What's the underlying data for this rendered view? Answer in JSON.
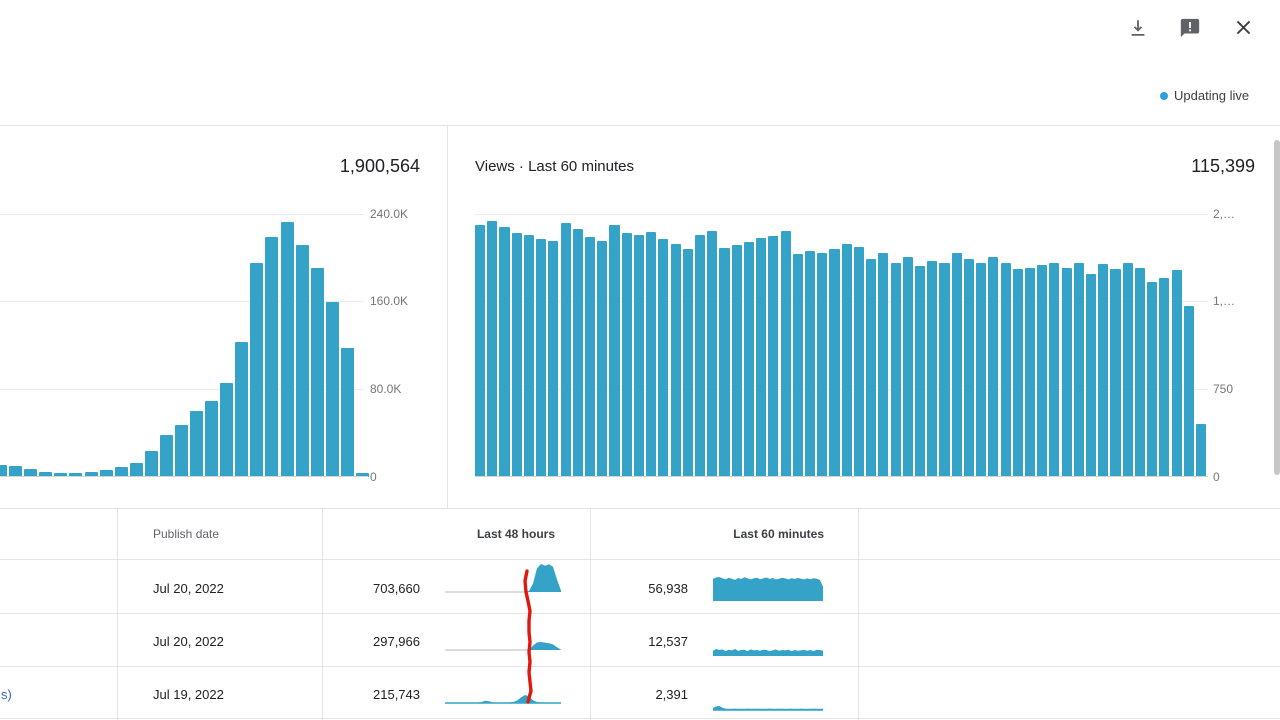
{
  "header": {
    "updating_live_label": "Updating live",
    "icons": [
      {
        "name": "download-icon"
      },
      {
        "name": "feedback-icon"
      },
      {
        "name": "close-icon"
      }
    ]
  },
  "colors": {
    "bar_blue": "#35a3c7",
    "live_dot_blue": "#2aa0dc",
    "red_annotation": "#e0190f",
    "link_blue": "#2e6bc0",
    "grid_gray": "#ececec",
    "axis_gray": "#d2d5d6",
    "border_gray": "#e4e4e4",
    "label_gray": "#767676",
    "icon_gray": "#5f6368",
    "scrollbar_gray": "#c6c6c6"
  },
  "chart_data": [
    {
      "id": "views-last-48-hours",
      "type": "bar",
      "title": "",
      "total": "1,900,564",
      "yticks": [
        "0",
        "80.0K",
        "160.0K",
        "240.0K"
      ],
      "ylim": [
        0,
        240000
      ],
      "values": [
        10900,
        10300,
        7000,
        4900,
        4000,
        3300,
        4500,
        6400,
        9400,
        13000,
        23600,
        38200,
        47300,
        60000,
        69700,
        85500,
        123300,
        195700,
        219100,
        232700,
        211500,
        190900,
        159400,
        117500,
        3300
      ]
    },
    {
      "id": "views-last-60-minutes",
      "type": "bar",
      "title": "Views · Last 60 minutes",
      "total": "115,399",
      "yticks": [
        "0",
        "750",
        "1,…",
        "2,…"
      ],
      "ylim": [
        0,
        2250
      ],
      "values": [
        2156,
        2190,
        2139,
        2088,
        2071,
        2037,
        2020,
        2173,
        2122,
        2054,
        2020,
        2156,
        2088,
        2071,
        2097,
        2037,
        1994,
        1952,
        2071,
        2105,
        1960,
        1985,
        2011,
        2045,
        2062,
        2105,
        1910,
        1930,
        1919,
        1952,
        1994,
        1968,
        1866,
        1919,
        1833,
        1884,
        1808,
        1850,
        1833,
        1920,
        1869,
        1830,
        1886,
        1835,
        1779,
        1787,
        1813,
        1835,
        1787,
        1827,
        1736,
        1821,
        1784,
        1827,
        1787,
        1671,
        1707,
        1770,
        1466,
        458
      ]
    }
  ],
  "table": {
    "headers": [
      {
        "label": "Publish date"
      },
      {
        "label": "Last 48 hours"
      },
      {
        "label": "Last 60 minutes"
      }
    ],
    "rows": [
      {
        "publish_date": "Jul 20, 2022",
        "last_48_hours": "703,660",
        "last_60_minutes": "56,938",
        "spark_last48": [
          0,
          0,
          0,
          0,
          0,
          0,
          0,
          0,
          0,
          0,
          0,
          0,
          0,
          0,
          0,
          0,
          0,
          0,
          0,
          0,
          0,
          0.04,
          0.3,
          0.85,
          1,
          0.94,
          0.99,
          0.9,
          0.45,
          0.05
        ],
        "bars_last60": [
          0.92,
          0.98,
          1,
          0.95,
          0.9,
          0.97,
          0.93,
          0.88,
          0.96,
          0.92,
          0.99,
          0.94,
          0.9,
          0.95,
          0.97,
          0.91,
          0.94,
          0.98,
          0.92,
          0.96,
          0.9,
          0.93,
          0.97,
          0.94,
          0.9,
          0.95,
          0.92,
          0.96,
          0.93,
          0.9,
          0.94,
          0.91,
          0.95,
          0.93,
          0.88,
          0.6
        ]
      },
      {
        "publish_date": "Jul 20, 2022",
        "last_48_hours": "297,966",
        "last_60_minutes": "12,537",
        "spark_last48": [
          0,
          0,
          0,
          0,
          0,
          0,
          0,
          0,
          0,
          0,
          0,
          0,
          0,
          0,
          0,
          0,
          0,
          0,
          0,
          0,
          0,
          0.05,
          0.55,
          0.95,
          1,
          0.92,
          0.85,
          0.7,
          0.35,
          0.05
        ],
        "bars_last60": [
          0.75,
          1,
          0.85,
          0.95,
          0.7,
          0.9,
          0.8,
          1,
          0.75,
          0.85,
          0.9,
          0.7,
          0.95,
          0.8,
          0.85,
          0.75,
          0.9,
          0.85,
          0.7,
          0.8,
          0.95,
          0.75,
          0.85,
          0.8,
          0.9,
          0.7,
          0.85,
          0.75,
          0.8,
          0.9,
          0.75,
          0.85,
          0.7,
          0.9,
          0.85,
          0.75
        ]
      },
      {
        "title_fragment": "s)",
        "publish_date": "Jul 19, 2022",
        "last_48_hours": "215,743",
        "last_60_minutes": "2,391",
        "spark_last48": [
          0.06,
          0.06,
          0.06,
          0.06,
          0.06,
          0.06,
          0.06,
          0.06,
          0.06,
          0.1,
          0.28,
          0.22,
          0.08,
          0.06,
          0.06,
          0.06,
          0.08,
          0.12,
          0.3,
          0.7,
          1,
          0.85,
          0.35,
          0.12,
          0.07,
          0.06,
          0.06,
          0.06,
          0.06,
          0.06
        ],
        "bars_last60": [
          0.5,
          0.9,
          1,
          0.6,
          0.35,
          0.3,
          0.3,
          0.35,
          0.3,
          0.3,
          0.3,
          0.35,
          0.3,
          0.3,
          0.35,
          0.3,
          0.3,
          0.3,
          0.35,
          0.3,
          0.3,
          0.35,
          0.3,
          0.3,
          0.3,
          0.35,
          0.3,
          0.3,
          0.35,
          0.3,
          0.3,
          0.3,
          0.35,
          0.3,
          0.3,
          0.3
        ]
      }
    ]
  },
  "annotation": {
    "red_line_points": [
      [
        527,
        571
      ],
      [
        525,
        581
      ],
      [
        526,
        592
      ],
      [
        528,
        601
      ],
      [
        530,
        611
      ],
      [
        529,
        621
      ],
      [
        529,
        632
      ],
      [
        530,
        642
      ],
      [
        529,
        652
      ],
      [
        530,
        662
      ],
      [
        529,
        672
      ],
      [
        530,
        682
      ],
      [
        531,
        691
      ],
      [
        529,
        698
      ],
      [
        528,
        702
      ]
    ]
  }
}
